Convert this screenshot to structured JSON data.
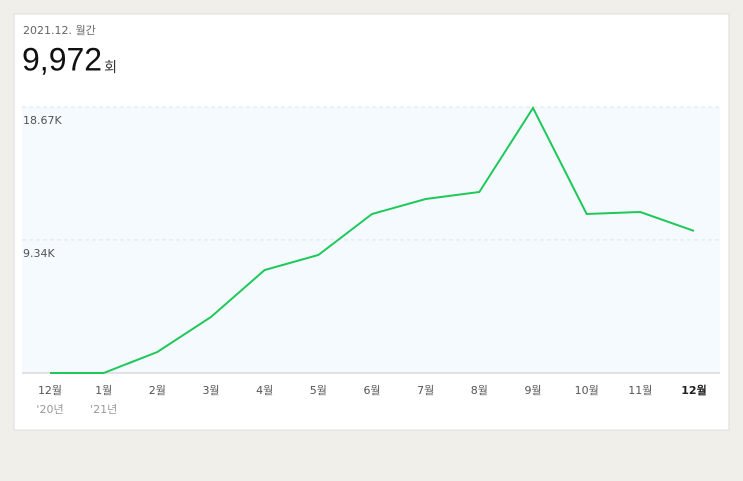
{
  "chart_data": {
    "type": "line",
    "period_label": "2021.12. 월간",
    "headline_value": "9,972",
    "headline_unit": "회",
    "categories": [
      "12월",
      "1월",
      "2월",
      "3월",
      "4월",
      "5월",
      "6월",
      "7월",
      "8월",
      "9월",
      "10월",
      "11월",
      "12월"
    ],
    "year_labels": [
      "'20년",
      "'21년",
      null,
      null,
      null,
      null,
      null,
      null,
      null,
      null,
      null,
      null,
      null
    ],
    "series": [
      {
        "name": null,
        "color": "#1ec85a",
        "values": [
          0,
          0,
          1474,
          3930,
          7229,
          8282,
          11160,
          12213,
          12704,
          18600,
          11160,
          11300,
          9972
        ]
      }
    ],
    "ylim": [
      0,
      18670
    ],
    "yticks": [
      {
        "value": 9340,
        "label": "9.34K"
      },
      {
        "value": 18670,
        "label": "18.67K"
      }
    ],
    "grid": true,
    "plot_background": "#f5fafe"
  }
}
